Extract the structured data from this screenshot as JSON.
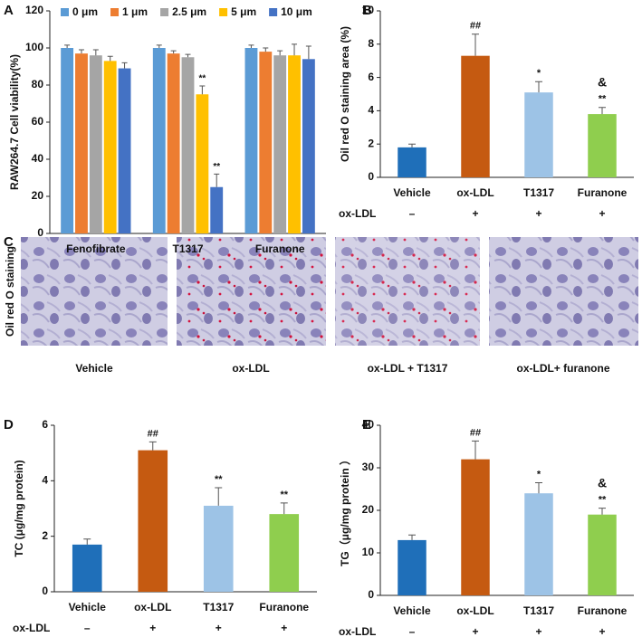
{
  "chart_data": [
    {
      "type": "bar",
      "panel": "A",
      "ylabel": "RAW264.7 Cell viability(%)",
      "categories": [
        "Fenofibrate",
        "T1317",
        "Furanone"
      ],
      "series": [
        {
          "name": "0 μm",
          "color": "#5b9bd5",
          "values": [
            100,
            100,
            100
          ],
          "errors": [
            1.5,
            1.5,
            1.5
          ],
          "annotations": [
            null,
            null,
            null
          ]
        },
        {
          "name": "1 μm",
          "color": "#ed7d31",
          "values": [
            97,
            97,
            98
          ],
          "errors": [
            2,
            1.5,
            2
          ],
          "annotations": [
            null,
            null,
            null
          ]
        },
        {
          "name": "2.5 μm",
          "color": "#a5a5a5",
          "values": [
            96,
            95,
            96
          ],
          "errors": [
            3,
            1.5,
            2.5
          ],
          "annotations": [
            null,
            null,
            null
          ]
        },
        {
          "name": "5 μm",
          "color": "#ffc000",
          "values": [
            93,
            75,
            96
          ],
          "errors": [
            2.5,
            4.5,
            6
          ],
          "annotations": [
            null,
            "**",
            null
          ]
        },
        {
          "name": "10 μm",
          "color": "#4472c4",
          "values": [
            89,
            25,
            94
          ],
          "errors": [
            3,
            7,
            7
          ],
          "annotations": [
            null,
            "**",
            null
          ]
        }
      ],
      "ylim": [
        0,
        120
      ],
      "yticks": [
        0,
        20,
        40,
        60,
        80,
        100,
        120
      ]
    },
    {
      "type": "bar",
      "panel": "B",
      "ylabel": "Oil red O staining area (%)",
      "categories": [
        "Vehicle",
        "ox-LDL",
        "T1317",
        "Furanone"
      ],
      "colors": [
        "#1f6fb9",
        "#c55a11",
        "#9dc3e6",
        "#8fce4e"
      ],
      "values": [
        1.8,
        7.3,
        5.1,
        3.8
      ],
      "errors": [
        0.2,
        1.3,
        0.65,
        0.4
      ],
      "annotations": [
        null,
        [
          "##"
        ],
        [
          "*"
        ],
        [
          "&",
          "**"
        ]
      ],
      "treatment": {
        "label": "ox-LDL",
        "marks": [
          "–",
          "+",
          "+",
          "+"
        ]
      },
      "ylim": [
        0,
        10
      ],
      "yticks": [
        0,
        2,
        4,
        6,
        8,
        10
      ]
    },
    {
      "type": "bar",
      "panel": "D",
      "ylabel": "TC (μg/mg protein)",
      "categories": [
        "Vehicle",
        "ox-LDL",
        "T1317",
        "Furanone"
      ],
      "colors": [
        "#1f6fb9",
        "#c55a11",
        "#9dc3e6",
        "#8fce4e"
      ],
      "values": [
        1.7,
        5.1,
        3.1,
        2.8
      ],
      "errors": [
        0.2,
        0.3,
        0.65,
        0.4
      ],
      "annotations": [
        null,
        [
          "##"
        ],
        [
          "**"
        ],
        [
          "**"
        ]
      ],
      "treatment": {
        "label": "ox-LDL",
        "marks": [
          "–",
          "+",
          "+",
          "+"
        ]
      },
      "ylim": [
        0,
        6
      ],
      "yticks": [
        0,
        2,
        4,
        6
      ]
    },
    {
      "type": "bar",
      "panel": "E",
      "ylabel": "TG（μg/mg protein  ）",
      "categories": [
        "Vehicle",
        "ox-LDL",
        "T1317",
        "Furanone"
      ],
      "colors": [
        "#1f6fb9",
        "#c55a11",
        "#9dc3e6",
        "#8fce4e"
      ],
      "values": [
        13,
        32,
        24,
        19
      ],
      "errors": [
        1.2,
        4.3,
        2.5,
        1.5
      ],
      "annotations": [
        null,
        [
          "##"
        ],
        [
          "*"
        ],
        [
          "&",
          "**"
        ]
      ],
      "treatment": {
        "label": "ox-LDL",
        "marks": [
          "–",
          "+",
          "+",
          "+"
        ]
      },
      "ylim": [
        0,
        40
      ],
      "yticks": [
        0,
        10,
        20,
        30,
        40
      ]
    }
  ],
  "image_panel": {
    "panel": "C",
    "ylabel": "Oil red O staining",
    "labels": [
      "Vehicle",
      "ox-LDL",
      "ox-LDL + T1317",
      "ox-LDL+ furanone"
    ]
  }
}
